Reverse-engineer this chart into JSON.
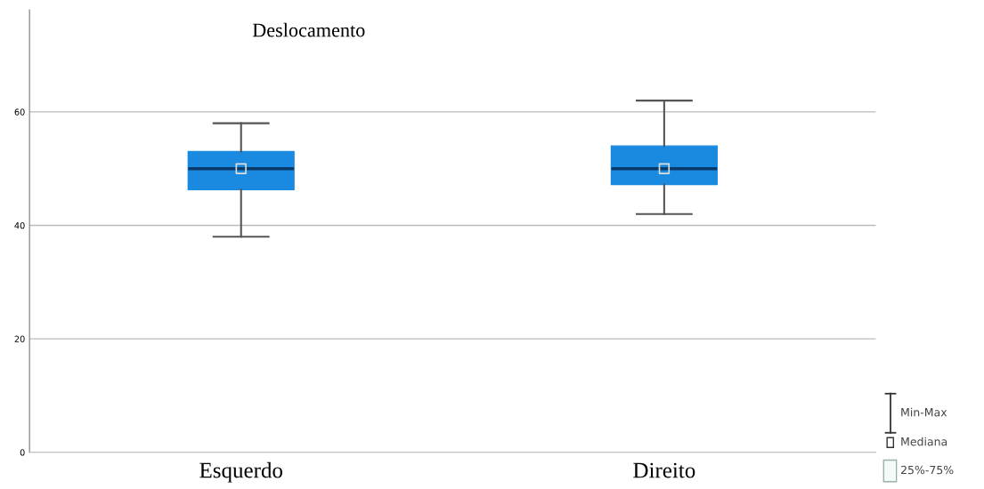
{
  "chart_data": {
    "type": "box",
    "title": "Deslocamento",
    "categories": [
      "Esquerdo",
      "Direito"
    ],
    "boxes": [
      {
        "low": 38,
        "q1": 46.3,
        "median": 50,
        "q3": 53,
        "high": 58
      },
      {
        "low": 42,
        "q1": 47.2,
        "median": 50,
        "q3": 54,
        "high": 62
      }
    ],
    "color": "#1a8ae0",
    "ylim": [
      0,
      78
    ],
    "yticks": [
      0,
      20,
      40,
      60
    ],
    "grid": "y",
    "annotations": [
      "Min-Max",
      "Mediana",
      "25%-75%"
    ]
  }
}
